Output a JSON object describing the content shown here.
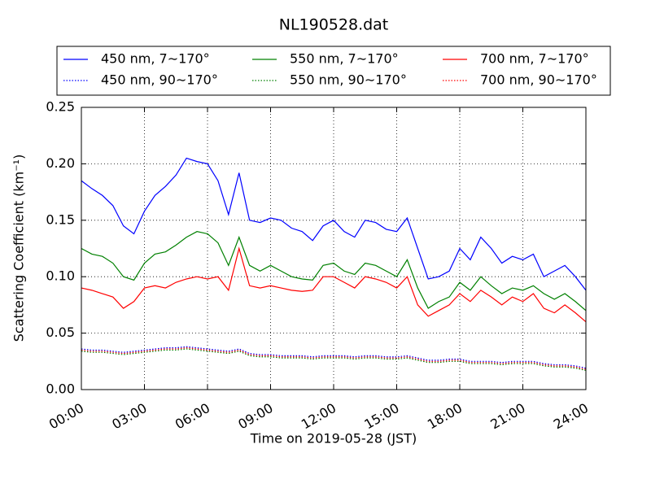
{
  "chart_data": {
    "type": "line",
    "title": "NL190528.dat",
    "x_label": "Time on 2019-05-28 (JST)",
    "y_label": "Scattering Coefficient (km⁻¹)",
    "x": [
      0,
      0.5,
      1,
      1.5,
      2,
      2.5,
      3,
      3.5,
      4,
      4.5,
      5,
      5.5,
      6,
      6.5,
      7,
      7.5,
      8,
      8.5,
      9,
      9.5,
      10,
      10.5,
      11,
      11.5,
      12,
      12.5,
      13,
      13.5,
      14,
      14.5,
      15,
      15.5,
      16,
      16.5,
      17,
      17.5,
      18,
      18.5,
      19,
      19.5,
      20,
      20.5,
      21,
      21.5,
      22,
      22.5,
      23,
      23.5,
      24
    ],
    "xlim": [
      0,
      24
    ],
    "xticks": [
      {
        "value": 0,
        "label": "00:00"
      },
      {
        "value": 3,
        "label": "03:00"
      },
      {
        "value": 6,
        "label": "06:00"
      },
      {
        "value": 9,
        "label": "09:00"
      },
      {
        "value": 12,
        "label": "12:00"
      },
      {
        "value": 15,
        "label": "15:00"
      },
      {
        "value": 18,
        "label": "18:00"
      },
      {
        "value": 21,
        "label": "21:00"
      },
      {
        "value": 24,
        "label": "24:00"
      }
    ],
    "ylim": [
      0,
      0.25
    ],
    "yticks": [
      {
        "value": 0,
        "label": "0.00"
      },
      0.05,
      {
        "value": 0.1,
        "label": "0.10"
      },
      0.15,
      {
        "value": 0.2,
        "label": "0.20"
      },
      0.25
    ],
    "grid": true,
    "series": [
      {
        "name": "450 nm, 7∼170°",
        "color": "#0000ff",
        "linestyle": "solid",
        "values": [
          0.185,
          0.178,
          0.172,
          0.163,
          0.145,
          0.138,
          0.158,
          0.172,
          0.18,
          0.19,
          0.205,
          0.202,
          0.2,
          0.185,
          0.155,
          0.192,
          0.15,
          0.148,
          0.152,
          0.15,
          0.143,
          0.14,
          0.132,
          0.145,
          0.15,
          0.14,
          0.135,
          0.15,
          0.148,
          0.142,
          0.14,
          0.152,
          0.125,
          0.098,
          0.1,
          0.105,
          0.125,
          0.115,
          0.135,
          0.125,
          0.112,
          0.118,
          0.115,
          0.12,
          0.1,
          0.105,
          0.11,
          0.1,
          0.088
        ]
      },
      {
        "name": "550 nm, 7∼170°",
        "color": "#008000",
        "linestyle": "solid",
        "values": [
          0.125,
          0.12,
          0.118,
          0.112,
          0.1,
          0.097,
          0.112,
          0.12,
          0.122,
          0.128,
          0.135,
          0.14,
          0.138,
          0.13,
          0.11,
          0.135,
          0.11,
          0.105,
          0.11,
          0.105,
          0.1,
          0.098,
          0.097,
          0.11,
          0.112,
          0.105,
          0.102,
          0.112,
          0.11,
          0.105,
          0.1,
          0.115,
          0.09,
          0.072,
          0.078,
          0.082,
          0.095,
          0.088,
          0.1,
          0.092,
          0.085,
          0.09,
          0.088,
          0.092,
          0.085,
          0.08,
          0.085,
          0.078,
          0.07
        ]
      },
      {
        "name": "700 nm, 7∼170°",
        "color": "#ff0000",
        "linestyle": "solid",
        "values": [
          0.09,
          0.088,
          0.085,
          0.082,
          0.072,
          0.078,
          0.09,
          0.092,
          0.09,
          0.095,
          0.098,
          0.1,
          0.098,
          0.1,
          0.088,
          0.125,
          0.092,
          0.09,
          0.092,
          0.09,
          0.088,
          0.087,
          0.088,
          0.1,
          0.1,
          0.095,
          0.09,
          0.1,
          0.098,
          0.095,
          0.09,
          0.1,
          0.075,
          0.065,
          0.07,
          0.075,
          0.085,
          0.078,
          0.088,
          0.082,
          0.075,
          0.082,
          0.078,
          0.085,
          0.072,
          0.068,
          0.075,
          0.068,
          0.06
        ]
      },
      {
        "name": "450 nm, 90∼170°",
        "color": "#0000ff",
        "linestyle": "dotted",
        "values": [
          0.036,
          0.035,
          0.035,
          0.034,
          0.033,
          0.034,
          0.035,
          0.036,
          0.037,
          0.037,
          0.038,
          0.037,
          0.036,
          0.035,
          0.034,
          0.036,
          0.032,
          0.031,
          0.031,
          0.03,
          0.03,
          0.03,
          0.029,
          0.03,
          0.03,
          0.03,
          0.029,
          0.03,
          0.03,
          0.029,
          0.029,
          0.03,
          0.028,
          0.026,
          0.026,
          0.027,
          0.027,
          0.025,
          0.025,
          0.025,
          0.024,
          0.025,
          0.025,
          0.025,
          0.023,
          0.022,
          0.022,
          0.021,
          0.019
        ]
      },
      {
        "name": "550 nm, 90∼170°",
        "color": "#008000",
        "linestyle": "dotted",
        "values": [
          0.034,
          0.033,
          0.033,
          0.032,
          0.031,
          0.032,
          0.033,
          0.034,
          0.035,
          0.035,
          0.036,
          0.035,
          0.034,
          0.033,
          0.032,
          0.034,
          0.03,
          0.029,
          0.029,
          0.028,
          0.028,
          0.028,
          0.027,
          0.028,
          0.028,
          0.028,
          0.027,
          0.028,
          0.028,
          0.027,
          0.027,
          0.028,
          0.026,
          0.024,
          0.024,
          0.025,
          0.025,
          0.023,
          0.023,
          0.023,
          0.022,
          0.023,
          0.023,
          0.023,
          0.021,
          0.02,
          0.02,
          0.019,
          0.017
        ]
      },
      {
        "name": "700 nm, 90∼170°",
        "color": "#ff0000",
        "linestyle": "dotted",
        "values": [
          0.035,
          0.034,
          0.034,
          0.033,
          0.032,
          0.033,
          0.034,
          0.035,
          0.036,
          0.036,
          0.037,
          0.036,
          0.035,
          0.034,
          0.033,
          0.035,
          0.031,
          0.03,
          0.03,
          0.029,
          0.029,
          0.029,
          0.028,
          0.029,
          0.029,
          0.029,
          0.028,
          0.029,
          0.029,
          0.028,
          0.028,
          0.029,
          0.027,
          0.025,
          0.025,
          0.026,
          0.026,
          0.024,
          0.024,
          0.024,
          0.023,
          0.024,
          0.024,
          0.024,
          0.022,
          0.021,
          0.021,
          0.02,
          0.018
        ]
      }
    ]
  }
}
